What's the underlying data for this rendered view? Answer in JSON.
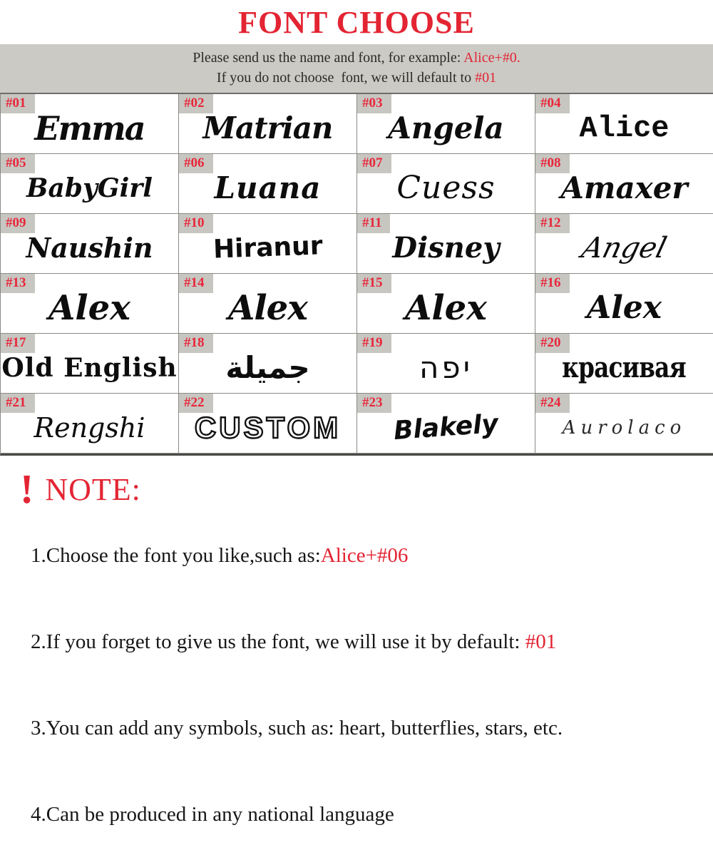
{
  "accent_red": "#e32433",
  "banner_gray": "#cbcac5",
  "title": "FONT CHOOSE",
  "banner": {
    "line1_prefix": "Please send us the name and font, for example: ",
    "line1_highlight": "Alice+#0.",
    "line2_prefix": "If you do not choose  font, we will default to ",
    "line2_highlight": "#01"
  },
  "grid": {
    "cells": [
      {
        "id": "#01",
        "name": "Emma"
      },
      {
        "id": "#02",
        "name": "Matrian"
      },
      {
        "id": "#03",
        "name": "Angela"
      },
      {
        "id": "#04",
        "name": "Alice"
      },
      {
        "id": "#05",
        "name": "BabyGirl"
      },
      {
        "id": "#06",
        "name": "Luana"
      },
      {
        "id": "#07",
        "name": "Cuess"
      },
      {
        "id": "#08",
        "name": "Amaxer"
      },
      {
        "id": "#09",
        "name": "Naushin"
      },
      {
        "id": "#10",
        "name": "Hiranur"
      },
      {
        "id": "#11",
        "name": "Disney"
      },
      {
        "id": "#12",
        "name": "Angel"
      },
      {
        "id": "#13",
        "name": "Alex"
      },
      {
        "id": "#14",
        "name": "Alex"
      },
      {
        "id": "#15",
        "name": "Alex"
      },
      {
        "id": "#16",
        "name": "Alex"
      },
      {
        "id": "#17",
        "name": "Old English"
      },
      {
        "id": "#18",
        "name": "جميلة"
      },
      {
        "id": "#19",
        "name": "יפה"
      },
      {
        "id": "#20",
        "name": "красивая"
      },
      {
        "id": "#21",
        "name": "Rengshi"
      },
      {
        "id": "#22",
        "name": "CUSTOM"
      },
      {
        "id": "#23",
        "name": "Blakely"
      },
      {
        "id": "#24",
        "name": "Aurolaco"
      }
    ]
  },
  "note": {
    "bang": "!",
    "heading": "NOTE:",
    "items": [
      {
        "prefix": "1.Choose the font you like,such as:",
        "highlight": "Alice+#06"
      },
      {
        "prefix": "2.If you forget to give us the font, we will use it by default: ",
        "highlight": "#01"
      },
      {
        "prefix": "3.You can add any symbols, such as: heart, butterflies, stars, etc.",
        "highlight": ""
      },
      {
        "prefix": "4.Can be produced in any national language",
        "highlight": ""
      }
    ]
  }
}
